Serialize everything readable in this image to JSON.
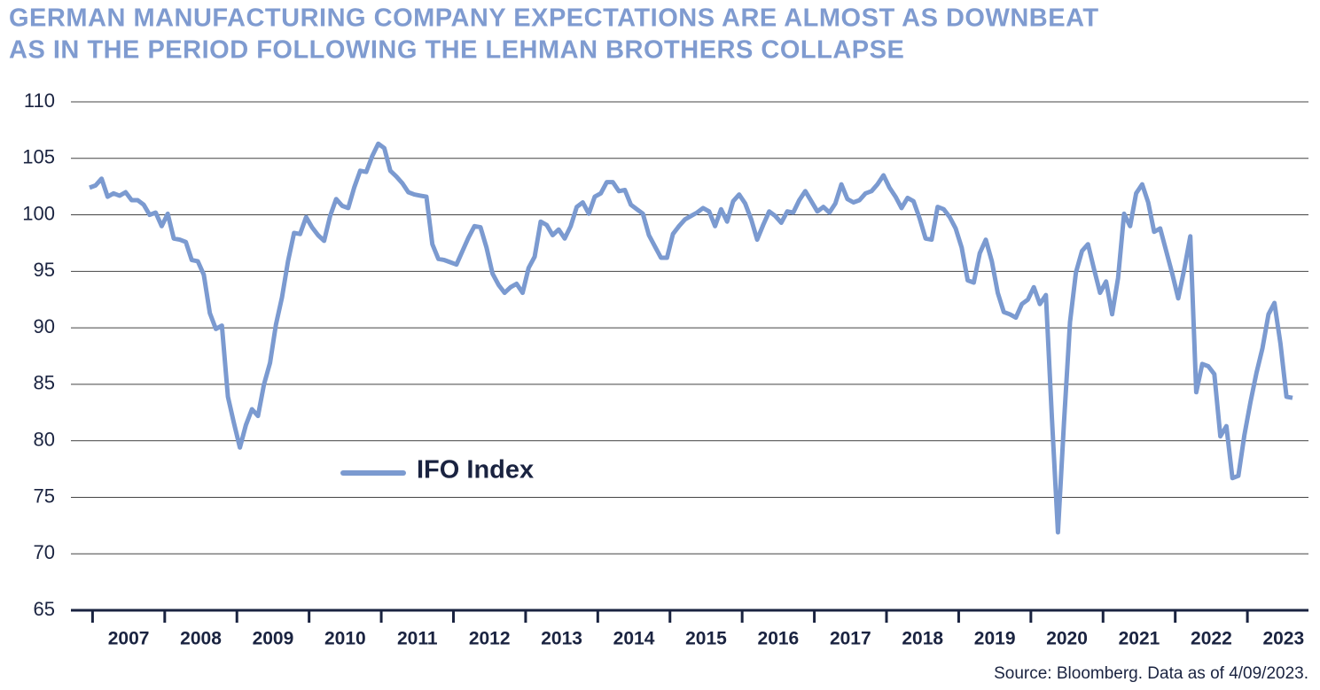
{
  "chart_data": {
    "type": "line",
    "title": [
      "GERMAN MANUFACTURING COMPANY EXPECTATIONS ARE ALMOST AS DOWNBEAT",
      "AS IN THE PERIOD FOLLOWING THE LEHMAN BROTHERS COLLAPSE"
    ],
    "source": "Source: Bloomberg. Data as of 4/09/2023.",
    "categories": [
      null,
      null,
      null,
      null,
      null,
      null,
      null,
      "2007",
      null,
      null,
      null,
      null,
      null,
      null,
      null,
      null,
      null,
      null,
      null,
      "2008",
      null,
      null,
      null,
      null,
      null,
      null,
      null,
      null,
      null,
      null,
      null,
      "2009",
      null,
      null,
      null,
      null,
      null,
      null,
      null,
      null,
      null,
      null,
      null,
      "2010",
      null,
      null,
      null,
      null,
      null,
      null,
      null,
      null,
      null,
      null,
      null,
      "2011",
      null,
      null,
      null,
      null,
      null,
      null,
      null,
      null,
      null,
      null,
      null,
      "2012",
      null,
      null,
      null,
      null,
      null,
      null,
      null,
      null,
      null,
      null,
      null,
      "2013",
      null,
      null,
      null,
      null,
      null,
      null,
      null,
      null,
      null,
      null,
      null,
      "2014",
      null,
      null,
      null,
      null,
      null,
      null,
      null,
      null,
      null,
      null,
      null,
      "2015",
      null,
      null,
      null,
      null,
      null,
      null,
      null,
      null,
      null,
      null,
      null,
      "2016",
      null,
      null,
      null,
      null,
      null,
      null,
      null,
      null,
      null,
      null,
      null,
      "2017",
      null,
      null,
      null,
      null,
      null,
      null,
      null,
      null,
      null,
      null,
      null,
      "2018",
      null,
      null,
      null,
      null,
      null,
      null,
      null,
      null,
      null,
      null,
      null,
      "2019",
      null,
      null,
      null,
      null,
      null,
      null,
      null,
      null,
      null,
      null,
      null,
      "2020",
      null,
      null,
      null,
      null,
      null,
      null,
      null,
      null,
      null,
      null,
      null,
      "2021",
      null,
      null,
      null,
      null,
      null,
      null,
      null,
      null,
      null,
      null,
      null,
      "2022",
      null,
      null,
      null,
      null,
      null,
      null,
      null,
      null,
      null,
      null,
      null,
      "2023",
      null
    ],
    "series": [
      {
        "name": "IFO Index",
        "color": "#7b9ad0",
        "values": [
          102.4,
          102.6,
          103.2,
          101.6,
          101.9,
          101.7,
          102.0,
          101.3,
          101.3,
          100.9,
          100.0,
          100.2,
          99.0,
          100.1,
          97.9,
          97.8,
          97.6,
          96.0,
          95.9,
          94.7,
          91.3,
          89.9,
          90.2,
          83.9,
          81.6,
          79.4,
          81.4,
          82.8,
          82.2,
          85.0,
          86.9,
          90.3,
          92.7,
          95.9,
          98.4,
          98.3,
          99.8,
          98.9,
          98.2,
          97.7,
          99.9,
          101.4,
          100.8,
          100.6,
          102.4,
          103.9,
          103.8,
          105.2,
          106.3,
          105.9,
          103.9,
          103.4,
          102.8,
          102.0,
          101.8,
          101.7,
          101.6,
          97.4,
          96.1,
          96.0,
          95.8,
          95.6,
          96.8,
          98.0,
          99.0,
          98.9,
          97.1,
          94.8,
          93.8,
          93.1,
          93.6,
          93.9,
          93.1,
          95.3,
          96.3,
          99.4,
          99.1,
          98.2,
          98.7,
          97.9,
          99.0,
          100.7,
          101.1,
          100.1,
          101.6,
          101.9,
          102.9,
          102.9,
          102.1,
          102.2,
          100.9,
          100.5,
          100.1,
          98.2,
          97.2,
          96.2,
          96.2,
          98.3,
          99.0,
          99.6,
          99.9,
          100.2,
          100.6,
          100.3,
          99.0,
          100.5,
          99.4,
          101.2,
          101.8,
          101.0,
          99.6,
          97.8,
          99.1,
          100.3,
          99.9,
          99.3,
          100.3,
          100.2,
          101.3,
          102.1,
          101.2,
          100.3,
          100.7,
          100.2,
          101.0,
          102.7,
          101.4,
          101.1,
          101.3,
          101.9,
          102.1,
          102.7,
          103.5,
          102.4,
          101.6,
          100.6,
          101.5,
          101.2,
          99.7,
          97.9,
          97.8,
          100.7,
          100.5,
          99.8,
          98.8,
          97.1,
          94.2,
          94.0,
          96.6,
          97.8,
          95.9,
          93.1,
          91.4,
          91.2,
          90.9,
          92.1,
          92.5,
          93.6,
          92.1,
          92.9,
          82.0,
          71.9,
          81.6,
          90.5,
          94.9,
          96.8,
          97.4,
          95.2,
          93.1,
          94.1,
          91.2,
          94.4,
          100.1,
          99.0,
          101.9,
          102.7,
          101.1,
          98.5,
          98.8,
          96.8,
          94.8,
          92.6,
          95.2,
          98.1,
          84.3,
          86.8,
          86.6,
          85.9,
          80.4,
          81.3,
          76.7,
          76.9,
          80.5,
          83.4,
          86.0,
          88.2,
          91.2,
          92.2,
          88.6,
          83.9,
          83.8
        ]
      }
    ],
    "ylim": [
      65,
      110
    ],
    "yticks": [
      65,
      70,
      75,
      80,
      85,
      90,
      95,
      100,
      105,
      110
    ],
    "grid": true
  }
}
